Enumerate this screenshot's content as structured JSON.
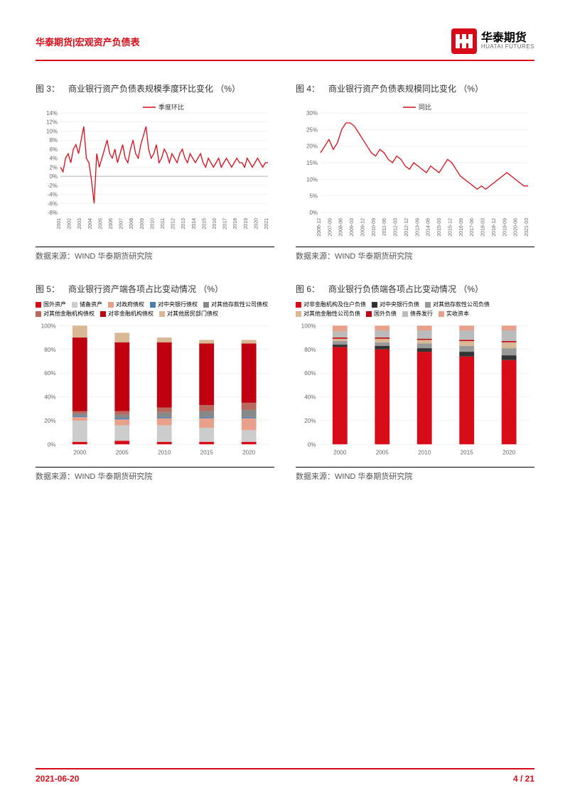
{
  "header": {
    "title": "华泰期货|宏观资产负债表",
    "logo_cn": "华泰期货",
    "logo_en": "HUATAI FUTURES"
  },
  "footer": {
    "date": "2021-06-20",
    "page": "4 / 21"
  },
  "source_label_prefix": "数据来源：",
  "source_text": "WIND  华泰期货研究院",
  "charts": {
    "c3": {
      "num": "图 3：",
      "title": "商业银行资产负债表规模季度环比变化 （%）",
      "type": "line",
      "legend": [
        "季度环比"
      ],
      "legend_colors": [
        "#d80c18"
      ],
      "ylim": [
        -8,
        14
      ],
      "ytick_step": 2,
      "xticks": [
        "2001",
        "2002",
        "2003",
        "2004",
        "2005",
        "2006",
        "2007",
        "2008",
        "2009",
        "2010",
        "2011",
        "2012",
        "2013",
        "2014",
        "2015",
        "2016",
        "2017",
        "2018",
        "2019",
        "2020",
        "2021"
      ],
      "line_color": "#d80c18",
      "data": [
        2,
        1,
        4,
        5,
        3,
        6,
        7,
        5,
        8,
        11,
        4,
        3,
        -1,
        -6,
        5,
        2,
        4,
        6,
        8,
        5,
        4,
        6,
        3,
        5,
        7,
        4,
        3,
        6,
        8,
        5,
        4,
        7,
        9,
        11,
        6,
        4,
        5,
        7,
        3,
        4,
        6,
        5,
        3,
        5,
        4,
        3,
        5,
        6,
        4,
        3,
        5,
        4,
        3,
        4,
        5,
        3,
        2,
        4,
        3,
        2,
        3,
        4,
        2,
        3,
        4,
        3,
        2,
        3,
        4,
        3,
        3,
        2,
        4,
        3,
        2,
        3,
        4,
        3,
        2,
        3,
        3
      ],
      "grid_color": "#e5e5e5",
      "background_color": "#ffffff"
    },
    "c4": {
      "num": "图 4：",
      "title": "商业银行资产负债表规模同比变化 （%）",
      "type": "line",
      "legend": [
        "同比"
      ],
      "legend_colors": [
        "#d80c18"
      ],
      "ylim": [
        0,
        30
      ],
      "ytick_step": 5,
      "xticks": [
        "2006-12",
        "2007-09",
        "2008-06",
        "2009-03",
        "2009-12",
        "2010-09",
        "2011-06",
        "2012-03",
        "2012-12",
        "2013-09",
        "2014-06",
        "2015-03",
        "2015-12",
        "2016-09",
        "2017-06",
        "2018-03",
        "2018-12",
        "2019-09",
        "2020-06",
        "2021-03"
      ],
      "line_color": "#d80c18",
      "data": [
        18,
        20,
        22,
        19,
        21,
        25,
        27,
        27,
        26,
        24,
        22,
        20,
        18,
        17,
        19,
        18,
        16,
        15,
        17,
        16,
        14,
        13,
        15,
        14,
        13,
        12,
        14,
        13,
        12,
        14,
        16,
        15,
        13,
        11,
        10,
        9,
        8,
        7,
        8,
        7,
        8,
        9,
        10,
        11,
        12,
        11,
        10,
        9,
        8,
        8
      ],
      "grid_color": "#e5e5e5",
      "background_color": "#ffffff"
    },
    "c5": {
      "num": "图 5：",
      "title": "商业银行资产端各项占比变动情况 （%）",
      "type": "stacked-bar",
      "ylim": [
        0,
        100
      ],
      "ytick_step": 20,
      "xticks": [
        "2000",
        "2005",
        "2010",
        "2015",
        "2020"
      ],
      "legend": [
        "国外资产",
        "储备资产",
        "对政府债权",
        "对中央银行债权",
        "对其他存款性公司债权",
        "对其他金融机构债权",
        "对非金融机构债权",
        "对其他居民部门债权"
      ],
      "legend_colors": [
        "#d80c18",
        "#cccccc",
        "#e8a08a",
        "#4a7fb5",
        "#888888",
        "#b8685c",
        "#c00010",
        "#d9b896"
      ],
      "bars": [
        [
          2,
          18,
          3,
          1,
          2,
          2,
          62,
          10
        ],
        [
          3,
          13,
          5,
          1,
          3,
          3,
          58,
          8
        ],
        [
          2,
          14,
          6,
          1,
          4,
          4,
          55,
          4
        ],
        [
          2,
          12,
          8,
          1,
          5,
          5,
          52,
          3
        ],
        [
          2,
          10,
          10,
          1,
          6,
          6,
          50,
          3
        ]
      ],
      "bar_width": 0.35,
      "grid_color": "#e5e5e5",
      "background_color": "#ffffff"
    },
    "c6": {
      "num": "图 6：",
      "title": "商业银行负债端各项占比变动情况 （%）",
      "type": "stacked-bar",
      "ylim": [
        0,
        100
      ],
      "ytick_step": 20,
      "xticks": [
        "2000",
        "2005",
        "2010",
        "2015",
        "2020"
      ],
      "legend": [
        "对非金融机构及住户负债",
        "对中央银行负债",
        "对其他存款性公司负债",
        "对其他金融性公司负债",
        "国外负债",
        "债券发行",
        "实收资本"
      ],
      "legend_colors": [
        "#d80c18",
        "#333333",
        "#999999",
        "#d9b896",
        "#c00010",
        "#bbbbbb",
        "#e8a08a"
      ],
      "bars": [
        [
          82,
          2,
          3,
          2,
          1,
          5,
          5
        ],
        [
          80,
          3,
          3,
          3,
          1,
          6,
          4
        ],
        [
          78,
          3,
          4,
          3,
          1,
          7,
          4
        ],
        [
          74,
          4,
          5,
          4,
          1,
          8,
          4
        ],
        [
          71,
          4,
          6,
          5,
          1,
          9,
          4
        ]
      ],
      "bar_width": 0.35,
      "grid_color": "#e5e5e5",
      "background_color": "#ffffff"
    }
  }
}
